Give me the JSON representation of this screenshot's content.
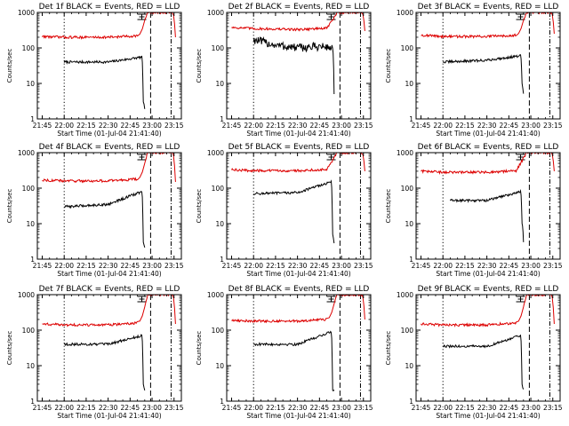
{
  "window": {
    "title": ""
  },
  "colors": {
    "events": "#000000",
    "lld": "#dd0000",
    "axes": "#000000",
    "background": "#ffffff"
  },
  "chart_data": [
    {
      "type": "line",
      "title": "Det 1f BLACK = Events, RED = LLD",
      "xlabel": "Start Time (01-Jul-04 21:41:40)",
      "ylabel": "Counts/sec",
      "xticks": [
        "21:45",
        "22:00",
        "22:15",
        "22:30",
        "22:45",
        "23:00",
        "23:15"
      ],
      "yticks": [
        "1",
        "10",
        "100",
        "1000"
      ],
      "yscale": "log",
      "ylim": [
        1,
        1000
      ],
      "marker_lines": [
        "22:00",
        "22:59",
        "23:13"
      ],
      "series": [
        {
          "name": "Events",
          "color": "black",
          "x": [
            "22:00",
            "22:30",
            "22:53",
            "22:54",
            "22:55"
          ],
          "values": [
            40,
            40,
            55,
            3,
            2
          ]
        },
        {
          "name": "LLD",
          "color": "red",
          "x": [
            "21:45",
            "22:00",
            "22:30",
            "22:50",
            "22:55",
            "22:57",
            "23:14",
            "23:16"
          ],
          "values": [
            210,
            200,
            200,
            220,
            600,
            1000,
            1000,
            200
          ]
        }
      ]
    },
    {
      "type": "line",
      "title": "Det 2f BLACK = Events, RED = LLD",
      "xlabel": "Start Time (01-Jul-04 21:41:40)",
      "ylabel": "Counts/sec",
      "xticks": [
        "21:45",
        "22:00",
        "22:15",
        "22:30",
        "22:45",
        "23:00",
        "23:15"
      ],
      "yticks": [
        "1",
        "10",
        "100",
        "1000"
      ],
      "yscale": "log",
      "ylim": [
        1,
        1000
      ],
      "marker_lines": [
        "22:00",
        "22:59",
        "23:13"
      ],
      "series": [
        {
          "name": "Events",
          "color": "black",
          "x": [
            "22:00",
            "22:15",
            "22:30",
            "22:45",
            "22:54",
            "22:55"
          ],
          "values": [
            170,
            120,
            100,
            110,
            100,
            5
          ]
        },
        {
          "name": "LLD",
          "color": "red",
          "x": [
            "21:45",
            "22:00",
            "22:30",
            "22:50",
            "22:55",
            "22:57",
            "23:14",
            "23:16"
          ],
          "values": [
            380,
            350,
            330,
            360,
            700,
            1000,
            1000,
            300
          ]
        }
      ]
    },
    {
      "type": "line",
      "title": "Det 3f BLACK = Events, RED = LLD",
      "xlabel": "Start Time (01-Jul-04 21:41:40)",
      "ylabel": "Counts/sec",
      "xticks": [
        "21:45",
        "22:00",
        "22:15",
        "22:30",
        "22:45",
        "23:00",
        "23:15"
      ],
      "yticks": [
        "1",
        "10",
        "100",
        "1000"
      ],
      "yscale": "log",
      "ylim": [
        1,
        1000
      ],
      "marker_lines": [
        "22:00",
        "22:59",
        "23:13"
      ],
      "series": [
        {
          "name": "Events",
          "color": "black",
          "x": [
            "22:00",
            "22:30",
            "22:53",
            "22:54",
            "22:55"
          ],
          "values": [
            40,
            45,
            60,
            10,
            5
          ]
        },
        {
          "name": "LLD",
          "color": "red",
          "x": [
            "21:45",
            "22:00",
            "22:30",
            "22:50",
            "22:55",
            "22:57",
            "23:14",
            "23:16"
          ],
          "values": [
            230,
            210,
            210,
            230,
            600,
            1000,
            1000,
            250
          ]
        }
      ]
    },
    {
      "type": "line",
      "title": "Det 4f BLACK = Events, RED = LLD",
      "xlabel": "Start Time (01-Jul-04 21:41:40)",
      "ylabel": "Counts/sec",
      "xticks": [
        "21:45",
        "22:00",
        "22:15",
        "22:30",
        "22:45",
        "23:00",
        "23:15"
      ],
      "yticks": [
        "1",
        "10",
        "100",
        "1000"
      ],
      "yscale": "log",
      "ylim": [
        1,
        1000
      ],
      "marker_lines": [
        "22:00",
        "22:59",
        "23:13"
      ],
      "series": [
        {
          "name": "Events",
          "color": "black",
          "x": [
            "22:00",
            "22:30",
            "22:53",
            "22:54",
            "22:55"
          ],
          "values": [
            30,
            35,
            80,
            3,
            2
          ]
        },
        {
          "name": "LLD",
          "color": "red",
          "x": [
            "21:45",
            "22:00",
            "22:30",
            "22:50",
            "22:55",
            "22:57",
            "23:14",
            "23:16"
          ],
          "values": [
            170,
            160,
            160,
            180,
            500,
            1000,
            1000,
            150
          ]
        }
      ]
    },
    {
      "type": "line",
      "title": "Det 5f BLACK = Events, RED = LLD",
      "xlabel": "Start Time (01-Jul-04 21:41:40)",
      "ylabel": "Counts/sec",
      "xticks": [
        "21:45",
        "22:00",
        "22:15",
        "22:30",
        "22:45",
        "23:00",
        "23:15"
      ],
      "yticks": [
        "1",
        "10",
        "100",
        "1000"
      ],
      "yscale": "log",
      "ylim": [
        1,
        1000
      ],
      "marker_lines": [
        "22:00",
        "22:59",
        "23:13"
      ],
      "series": [
        {
          "name": "Events",
          "color": "black",
          "x": [
            "22:00",
            "22:30",
            "22:53",
            "22:54",
            "22:55"
          ],
          "values": [
            70,
            75,
            150,
            5,
            3
          ]
        },
        {
          "name": "LLD",
          "color": "red",
          "x": [
            "21:45",
            "22:00",
            "22:30",
            "22:50",
            "22:55",
            "22:57",
            "23:14",
            "23:16"
          ],
          "values": [
            330,
            310,
            310,
            340,
            700,
            1000,
            1000,
            300
          ]
        }
      ]
    },
    {
      "type": "line",
      "title": "Det 6f BLACK = Events, RED = LLD",
      "xlabel": "Start Time (01-Jul-04 21:41:40)",
      "ylabel": "Counts/sec",
      "xticks": [
        "21:45",
        "22:00",
        "22:15",
        "22:30",
        "22:45",
        "23:00",
        "23:15"
      ],
      "yticks": [
        "1",
        "10",
        "100",
        "1000"
      ],
      "yscale": "log",
      "ylim": [
        1,
        1000
      ],
      "marker_lines": [
        "22:00",
        "22:59",
        "23:13"
      ],
      "series": [
        {
          "name": "Events",
          "color": "black",
          "x": [
            "22:05",
            "22:30",
            "22:53",
            "22:54",
            "22:55"
          ],
          "values": [
            45,
            45,
            80,
            10,
            3
          ]
        },
        {
          "name": "LLD",
          "color": "red",
          "x": [
            "21:45",
            "22:00",
            "22:30",
            "22:50",
            "22:55",
            "22:57",
            "23:14",
            "23:16"
          ],
          "values": [
            300,
            280,
            280,
            310,
            700,
            1000,
            1000,
            300
          ]
        }
      ]
    },
    {
      "type": "line",
      "title": "Det 7f BLACK = Events, RED = LLD",
      "xlabel": "Start Time (01-Jul-04 21:41:40)",
      "ylabel": "Counts/sec",
      "xticks": [
        "21:45",
        "22:00",
        "22:15",
        "22:30",
        "22:45",
        "23:00",
        "23:15"
      ],
      "yticks": [
        "1",
        "10",
        "100",
        "1000"
      ],
      "yscale": "log",
      "ylim": [
        1,
        1000
      ],
      "marker_lines": [
        "22:00",
        "22:59",
        "23:13"
      ],
      "series": [
        {
          "name": "Events",
          "color": "black",
          "x": [
            "22:00",
            "22:30",
            "22:53",
            "22:54",
            "22:55"
          ],
          "values": [
            40,
            40,
            70,
            3,
            2
          ]
        },
        {
          "name": "LLD",
          "color": "red",
          "x": [
            "21:45",
            "22:00",
            "22:30",
            "22:50",
            "22:55",
            "22:57",
            "23:14",
            "23:16"
          ],
          "values": [
            150,
            140,
            140,
            160,
            450,
            1000,
            1000,
            150
          ]
        }
      ]
    },
    {
      "type": "line",
      "title": "Det 8f BLACK = Events, RED = LLD",
      "xlabel": "Start Time (01-Jul-04 21:41:40)",
      "ylabel": "Counts/sec",
      "xticks": [
        "21:45",
        "22:00",
        "22:15",
        "22:30",
        "22:45",
        "23:00",
        "23:15"
      ],
      "yticks": [
        "1",
        "10",
        "100",
        "1000"
      ],
      "yscale": "log",
      "ylim": [
        1,
        1000
      ],
      "marker_lines": [
        "22:00",
        "22:59",
        "23:13"
      ],
      "series": [
        {
          "name": "Events",
          "color": "black",
          "x": [
            "22:00",
            "22:30",
            "22:53",
            "22:54",
            "22:55"
          ],
          "values": [
            40,
            40,
            90,
            2,
            2
          ]
        },
        {
          "name": "LLD",
          "color": "red",
          "x": [
            "21:45",
            "22:00",
            "22:30",
            "22:50",
            "22:55",
            "22:57",
            "23:14",
            "23:16"
          ],
          "values": [
            190,
            180,
            180,
            200,
            550,
            1000,
            1000,
            200
          ]
        }
      ]
    },
    {
      "type": "line",
      "title": "Det 9f BLACK = Events, RED = LLD",
      "xlabel": "Start Time (01-Jul-04 21:41:40)",
      "ylabel": "Counts/sec",
      "xticks": [
        "21:45",
        "22:00",
        "22:15",
        "22:30",
        "22:45",
        "23:00",
        "23:15"
      ],
      "yticks": [
        "1",
        "10",
        "100",
        "1000"
      ],
      "yscale": "log",
      "ylim": [
        1,
        1000
      ],
      "marker_lines": [
        "22:00",
        "22:59",
        "23:13"
      ],
      "series": [
        {
          "name": "Events",
          "color": "black",
          "x": [
            "22:00",
            "22:30",
            "22:53",
            "22:54",
            "22:55"
          ],
          "values": [
            35,
            35,
            70,
            3,
            2
          ]
        },
        {
          "name": "LLD",
          "color": "red",
          "x": [
            "21:45",
            "22:00",
            "22:30",
            "22:50",
            "22:55",
            "22:57",
            "23:14",
            "23:16"
          ],
          "values": [
            150,
            140,
            140,
            160,
            450,
            1000,
            1000,
            150
          ]
        }
      ]
    }
  ]
}
